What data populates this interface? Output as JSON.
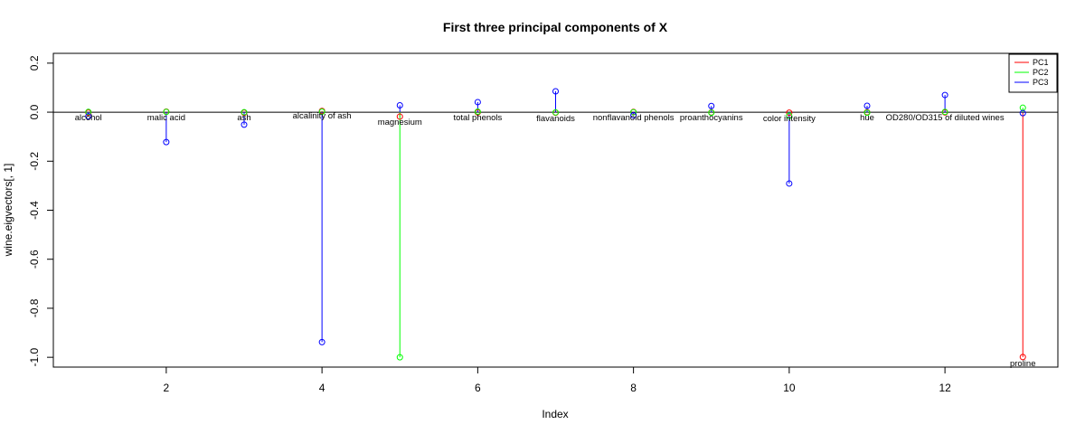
{
  "chart_data": {
    "type": "scatter",
    "title": "First three principal components of X",
    "xlabel": "Index",
    "ylabel": "wine.eigvectors[, 1]",
    "xlim": [
      0.55,
      13.45
    ],
    "ylim": [
      -1.04,
      0.24
    ],
    "x_ticks": [
      2,
      4,
      6,
      8,
      10,
      12
    ],
    "x_tick_labels": [
      "2",
      "4",
      "6",
      "8",
      "10",
      "12"
    ],
    "y_ticks": [
      -1.0,
      -0.8,
      -0.6,
      -0.4,
      -0.2,
      0.0,
      0.2
    ],
    "y_tick_labels": [
      "-1.0",
      "-0.8",
      "-0.6",
      "-0.4",
      "-0.2",
      "0.0",
      "0.2"
    ],
    "baseline": 0,
    "legend_position": "top-right",
    "x": [
      1,
      2,
      3,
      4,
      5,
      6,
      7,
      8,
      9,
      10,
      11,
      12,
      13
    ],
    "variable_labels": [
      "alcohol",
      "malic acid",
      "ash",
      "alcalinity of ash",
      "magnesium",
      "total phenols",
      "flavanoids",
      "nonflavanoid phenols",
      "proanthocyanins",
      "color intensity",
      "hue",
      "OD280/OD315 of diluted wines",
      "proline"
    ],
    "series": [
      {
        "name": "PC1",
        "color": "#ff0000",
        "values": [
          -0.002,
          0.002,
          -0.002,
          0.005,
          -0.018,
          -0.001,
          -0.002,
          0.001,
          -0.001,
          -0.002,
          0.0,
          -0.001,
          -0.999
        ]
      },
      {
        "name": "PC2",
        "color": "#00ff00",
        "values": [
          0.001,
          0.001,
          0.0,
          0.002,
          -1.0,
          0.002,
          -0.001,
          0.0,
          -0.002,
          -0.015,
          -0.002,
          0.001,
          0.018
        ]
      },
      {
        "name": "PC3",
        "color": "#0000ff",
        "values": [
          -0.017,
          -0.122,
          -0.051,
          -0.938,
          0.028,
          0.041,
          0.085,
          -0.013,
          0.025,
          -0.291,
          0.026,
          0.07,
          -0.004
        ]
      }
    ]
  }
}
